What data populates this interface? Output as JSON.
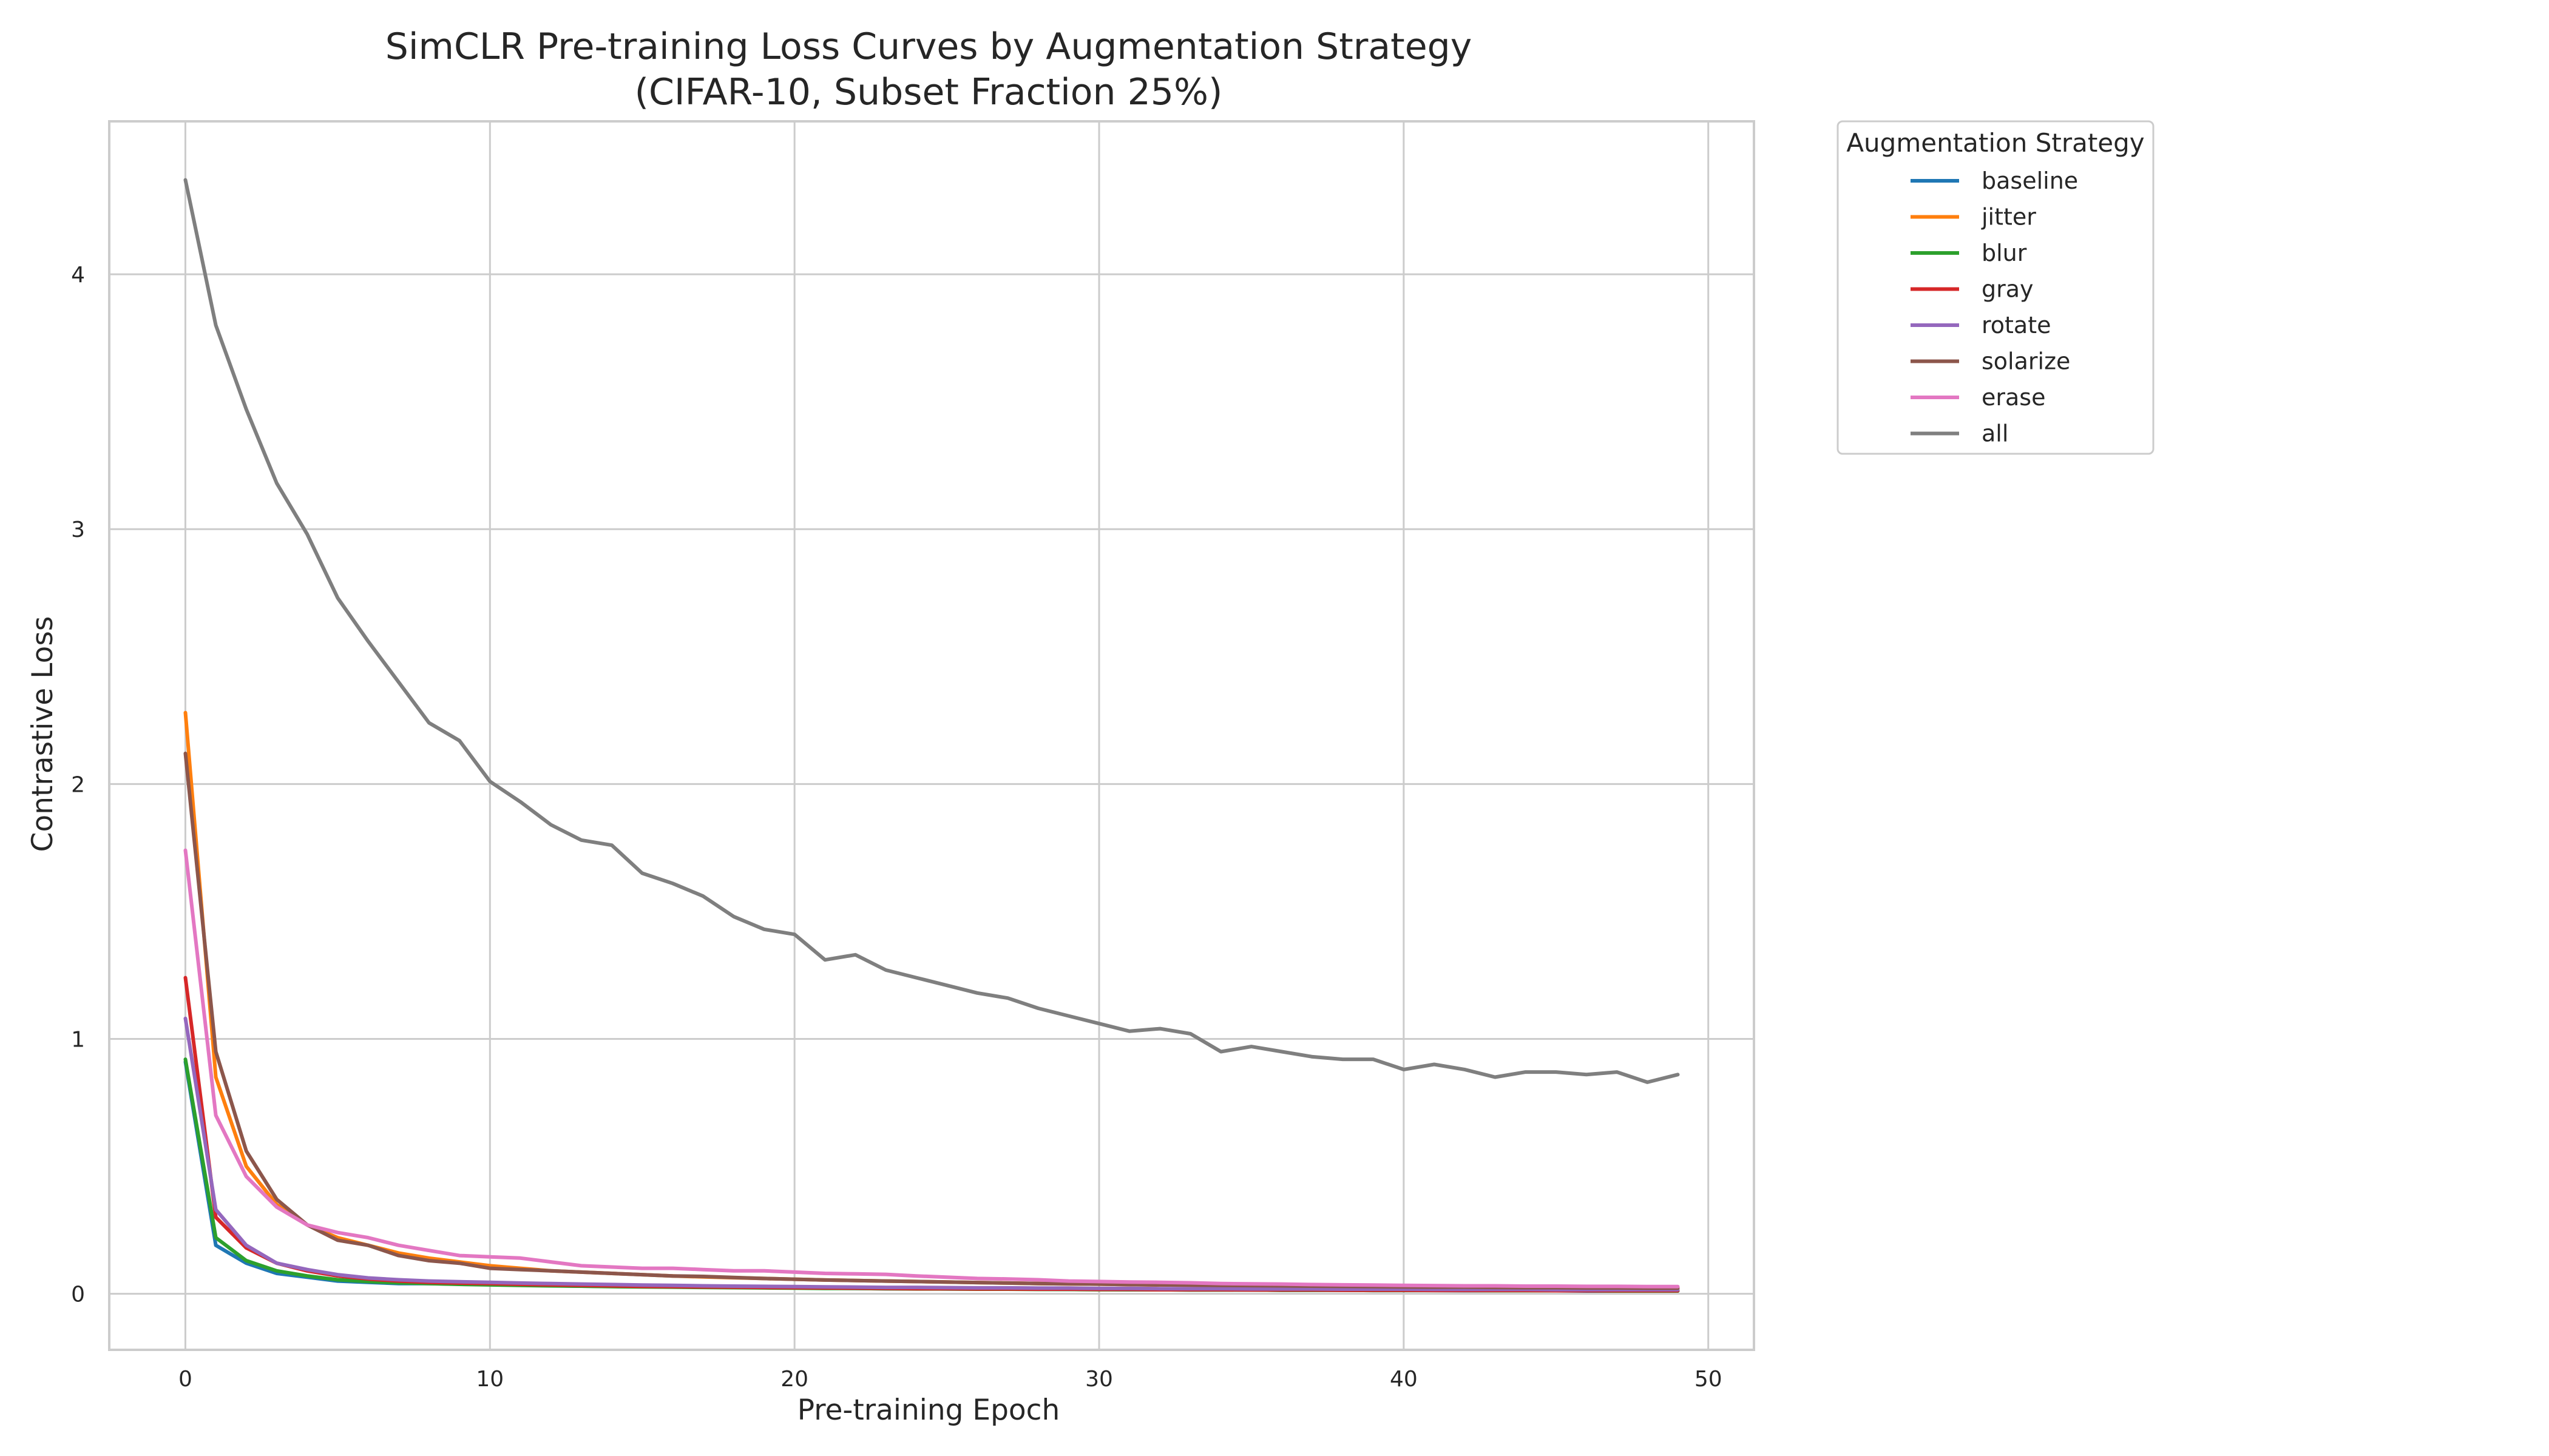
{
  "chart_data": {
    "type": "line",
    "title_line1": "SimCLR Pre-training Loss Curves by Augmentation Strategy",
    "title_line2": "(CIFAR-10, Subset Fraction 25%)",
    "xlabel": "Pre-training Epoch",
    "ylabel": "Contrastive Loss",
    "xlim": [
      -2.5,
      51.5
    ],
    "ylim": [
      -0.22,
      4.6
    ],
    "x_ticks": [
      0,
      10,
      20,
      30,
      40,
      50
    ],
    "y_ticks": [
      0,
      1,
      2,
      3,
      4
    ],
    "grid": true,
    "legend": {
      "title": "Augmentation Strategy",
      "placement": "outside-top-right"
    },
    "x": [
      0,
      1,
      2,
      3,
      4,
      5,
      6,
      7,
      8,
      9,
      10,
      11,
      12,
      13,
      14,
      15,
      16,
      17,
      18,
      19,
      20,
      21,
      22,
      23,
      24,
      25,
      26,
      27,
      28,
      29,
      30,
      31,
      32,
      33,
      34,
      35,
      36,
      37,
      38,
      39,
      40,
      41,
      42,
      43,
      44,
      45,
      46,
      47,
      48,
      49
    ],
    "series": [
      {
        "name": "baseline",
        "color": "#1f77b4",
        "values": [
          0.91,
          0.19,
          0.12,
          0.08,
          0.065,
          0.05,
          0.045,
          0.04,
          0.04,
          0.038,
          0.036,
          0.034,
          0.032,
          0.03,
          0.029,
          0.028,
          0.027,
          0.026,
          0.025,
          0.024,
          0.023,
          0.022,
          0.021,
          0.02,
          0.02,
          0.019,
          0.019,
          0.018,
          0.018,
          0.017,
          0.017,
          0.016,
          0.016,
          0.015,
          0.015,
          0.015,
          0.014,
          0.014,
          0.014,
          0.013,
          0.013,
          0.013,
          0.012,
          0.012,
          0.012,
          0.012,
          0.011,
          0.011,
          0.011,
          0.011
        ]
      },
      {
        "name": "jitter",
        "color": "#ff7f0e",
        "values": [
          2.28,
          0.85,
          0.5,
          0.35,
          0.27,
          0.22,
          0.19,
          0.16,
          0.14,
          0.125,
          0.11,
          0.1,
          0.09,
          0.085,
          0.08,
          0.075,
          0.07,
          0.066,
          0.063,
          0.06,
          0.057,
          0.054,
          0.052,
          0.05,
          0.048,
          0.046,
          0.044,
          0.042,
          0.04,
          0.039,
          0.038,
          0.036,
          0.035,
          0.034,
          0.033,
          0.032,
          0.031,
          0.03,
          0.029,
          0.028,
          0.027,
          0.026,
          0.026,
          0.025,
          0.024,
          0.024,
          0.023,
          0.023,
          0.022,
          0.022
        ]
      },
      {
        "name": "blur",
        "color": "#2ca02c",
        "values": [
          0.92,
          0.22,
          0.13,
          0.09,
          0.07,
          0.055,
          0.048,
          0.043,
          0.04,
          0.037,
          0.035,
          0.033,
          0.031,
          0.03,
          0.028,
          0.027,
          0.026,
          0.025,
          0.024,
          0.023,
          0.022,
          0.021,
          0.021,
          0.02,
          0.019,
          0.019,
          0.018,
          0.018,
          0.017,
          0.017,
          0.016,
          0.016,
          0.016,
          0.015,
          0.015,
          0.015,
          0.014,
          0.014,
          0.014,
          0.013,
          0.013,
          0.013,
          0.013,
          0.012,
          0.012,
          0.012,
          0.012,
          0.011,
          0.011,
          0.011
        ]
      },
      {
        "name": "gray",
        "color": "#d62728",
        "values": [
          1.24,
          0.3,
          0.18,
          0.12,
          0.09,
          0.07,
          0.058,
          0.05,
          0.045,
          0.042,
          0.04,
          0.037,
          0.035,
          0.033,
          0.031,
          0.029,
          0.028,
          0.027,
          0.026,
          0.025,
          0.024,
          0.023,
          0.022,
          0.021,
          0.02,
          0.02,
          0.019,
          0.019,
          0.018,
          0.018,
          0.017,
          0.017,
          0.016,
          0.016,
          0.016,
          0.015,
          0.015,
          0.015,
          0.014,
          0.014,
          0.014,
          0.013,
          0.013,
          0.013,
          0.013,
          0.012,
          0.012,
          0.012,
          0.012,
          0.012
        ]
      },
      {
        "name": "rotate",
        "color": "#9467bd",
        "values": [
          1.08,
          0.33,
          0.19,
          0.12,
          0.095,
          0.075,
          0.062,
          0.055,
          0.05,
          0.047,
          0.045,
          0.042,
          0.04,
          0.038,
          0.036,
          0.034,
          0.033,
          0.031,
          0.03,
          0.029,
          0.028,
          0.027,
          0.026,
          0.025,
          0.025,
          0.024,
          0.023,
          0.023,
          0.022,
          0.022,
          0.021,
          0.021,
          0.02,
          0.02,
          0.02,
          0.019,
          0.019,
          0.019,
          0.018,
          0.018,
          0.018,
          0.017,
          0.017,
          0.017,
          0.017,
          0.016,
          0.016,
          0.016,
          0.016,
          0.016
        ]
      },
      {
        "name": "solarize",
        "color": "#8c564b",
        "values": [
          2.12,
          0.95,
          0.56,
          0.37,
          0.27,
          0.21,
          0.19,
          0.15,
          0.13,
          0.12,
          0.1,
          0.095,
          0.09,
          0.085,
          0.08,
          0.075,
          0.07,
          0.068,
          0.064,
          0.06,
          0.057,
          0.054,
          0.052,
          0.05,
          0.048,
          0.046,
          0.044,
          0.042,
          0.04,
          0.039,
          0.038,
          0.036,
          0.035,
          0.034,
          0.033,
          0.032,
          0.031,
          0.03,
          0.029,
          0.028,
          0.027,
          0.026,
          0.026,
          0.025,
          0.024,
          0.024,
          0.023,
          0.023,
          0.022,
          0.022
        ]
      },
      {
        "name": "erase",
        "color": "#e377c2",
        "values": [
          1.74,
          0.7,
          0.46,
          0.34,
          0.27,
          0.24,
          0.22,
          0.19,
          0.17,
          0.15,
          0.145,
          0.14,
          0.125,
          0.11,
          0.105,
          0.1,
          0.1,
          0.095,
          0.09,
          0.09,
          0.085,
          0.08,
          0.078,
          0.076,
          0.07,
          0.065,
          0.06,
          0.058,
          0.055,
          0.05,
          0.048,
          0.046,
          0.045,
          0.043,
          0.04,
          0.039,
          0.038,
          0.036,
          0.035,
          0.034,
          0.033,
          0.032,
          0.031,
          0.031,
          0.03,
          0.03,
          0.029,
          0.029,
          0.028,
          0.028
        ]
      },
      {
        "name": "all",
        "color": "#7f7f7f",
        "values": [
          4.37,
          3.8,
          3.47,
          3.18,
          2.98,
          2.73,
          2.56,
          2.4,
          2.24,
          2.17,
          2.01,
          1.93,
          1.84,
          1.78,
          1.76,
          1.65,
          1.61,
          1.56,
          1.48,
          1.43,
          1.41,
          1.31,
          1.33,
          1.27,
          1.24,
          1.21,
          1.18,
          1.16,
          1.12,
          1.09,
          1.06,
          1.03,
          1.04,
          1.02,
          0.95,
          0.97,
          0.95,
          0.93,
          0.92,
          0.92,
          0.88,
          0.9,
          0.88,
          0.85,
          0.87,
          0.87,
          0.86,
          0.87,
          0.83,
          0.86
        ]
      }
    ]
  }
}
